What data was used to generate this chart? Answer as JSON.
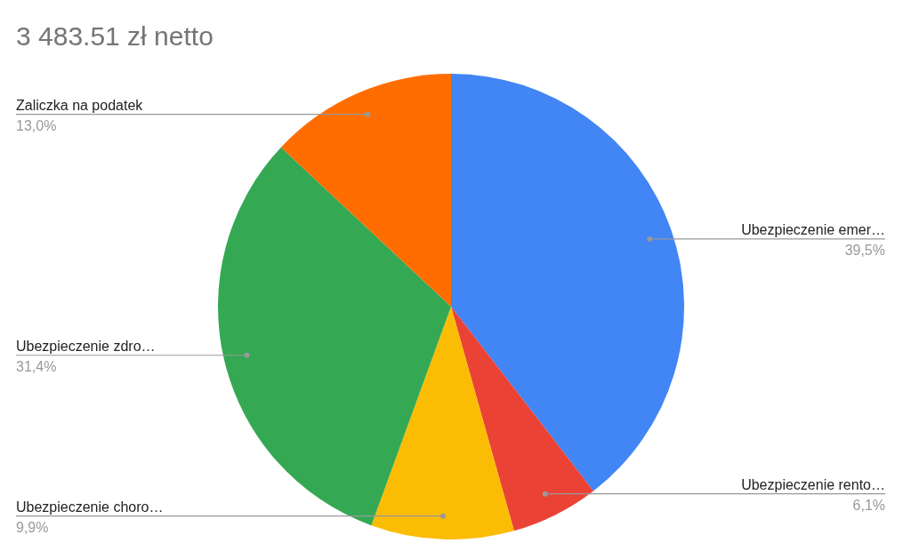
{
  "chart_data": {
    "type": "pie",
    "title": "3 483.51 zł netto",
    "categories": [
      "Ubezpieczenie emer…",
      "Ubezpieczenie rento…",
      "Ubezpieczenie choro…",
      "Ubezpieczenie zdro…",
      "Zaliczka na podatek"
    ],
    "values": [
      39.5,
      6.1,
      9.9,
      31.4,
      13.0
    ],
    "colors": [
      "#4285f4",
      "#ea4335",
      "#fbbc04",
      "#34a853",
      "#ff6d01"
    ],
    "value_labels": [
      "39,5%",
      "6,1%",
      "9,9%",
      "31,4%",
      "13,0%"
    ],
    "legend": false
  }
}
